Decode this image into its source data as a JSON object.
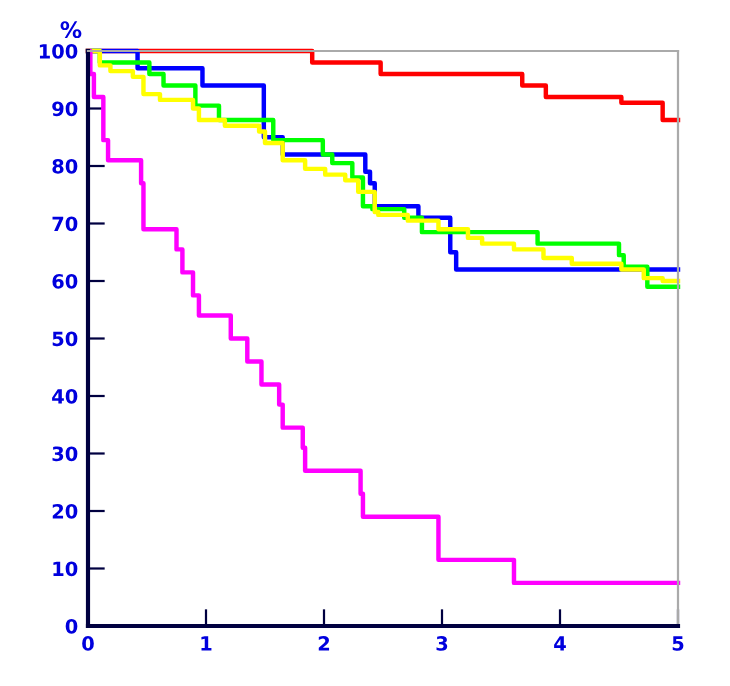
{
  "chart_data": {
    "type": "step",
    "ylabel": "%",
    "xlim": [
      0,
      5
    ],
    "ylim": [
      0,
      100
    ],
    "xticks": [
      0,
      1,
      2,
      3,
      4,
      5
    ],
    "yticks": [
      0,
      10,
      20,
      30,
      40,
      50,
      60,
      70,
      80,
      90,
      100
    ],
    "grid": false,
    "legend": false,
    "marker": "none",
    "line_style": "solid",
    "series": [
      {
        "color": "#ff0000",
        "x": [
          0,
          1.9,
          2.48,
          3.68,
          3.88,
          4.52,
          4.87,
          5
        ],
        "values": [
          100,
          98,
          96,
          94,
          92,
          91,
          88,
          88
        ]
      },
      {
        "color": "#0000ff",
        "x": [
          0,
          0.42,
          0.97,
          1.49,
          1.65,
          2.35,
          2.39,
          2.43,
          2.8,
          3.07,
          3.12,
          5
        ],
        "values": [
          100,
          97,
          94,
          85,
          82,
          79,
          77,
          73,
          71,
          65,
          62,
          62
        ]
      },
      {
        "color": "#00ff00",
        "x": [
          0,
          0.1,
          0.52,
          0.64,
          0.91,
          1.11,
          1.57,
          1.99,
          2.07,
          2.24,
          2.33,
          2.41,
          2.68,
          2.83,
          3.81,
          4.5,
          4.54,
          4.74,
          5
        ],
        "values": [
          100,
          98,
          96,
          94,
          90.5,
          88,
          84.5,
          82,
          80.5,
          78,
          73,
          72.5,
          71,
          68.5,
          66.5,
          64.5,
          62.5,
          59,
          59
        ]
      },
      {
        "color": "#ffff00",
        "x": [
          0,
          0.1,
          0.19,
          0.38,
          0.47,
          0.61,
          0.89,
          0.94,
          1.16,
          1.45,
          1.5,
          1.65,
          1.84,
          2.01,
          2.18,
          2.29,
          2.43,
          2.46,
          2.71,
          2.97,
          3.22,
          3.34,
          3.61,
          3.86,
          4.1,
          4.52,
          4.71,
          4.87,
          5
        ],
        "values": [
          100,
          97.5,
          96.5,
          95.5,
          92.5,
          91.5,
          90,
          88,
          87,
          86,
          84,
          81,
          79.5,
          78.5,
          77.5,
          75.5,
          72,
          71.5,
          70.5,
          69,
          67.5,
          66.5,
          65.5,
          64,
          63,
          62,
          60.5,
          60,
          60
        ]
      },
      {
        "color": "#ff00ff",
        "x": [
          0,
          0.02,
          0.05,
          0.13,
          0.17,
          0.45,
          0.47,
          0.75,
          0.8,
          0.89,
          0.94,
          1.21,
          1.35,
          1.47,
          1.62,
          1.65,
          1.82,
          1.84,
          2.31,
          2.33,
          2.97,
          3.61,
          5
        ],
        "values": [
          100,
          96,
          92,
          84.5,
          81,
          77,
          69,
          65.5,
          61.5,
          57.5,
          54,
          50,
          46,
          42,
          38.5,
          34.5,
          31,
          27,
          23,
          19,
          11.5,
          7.5,
          7.5
        ]
      }
    ]
  }
}
